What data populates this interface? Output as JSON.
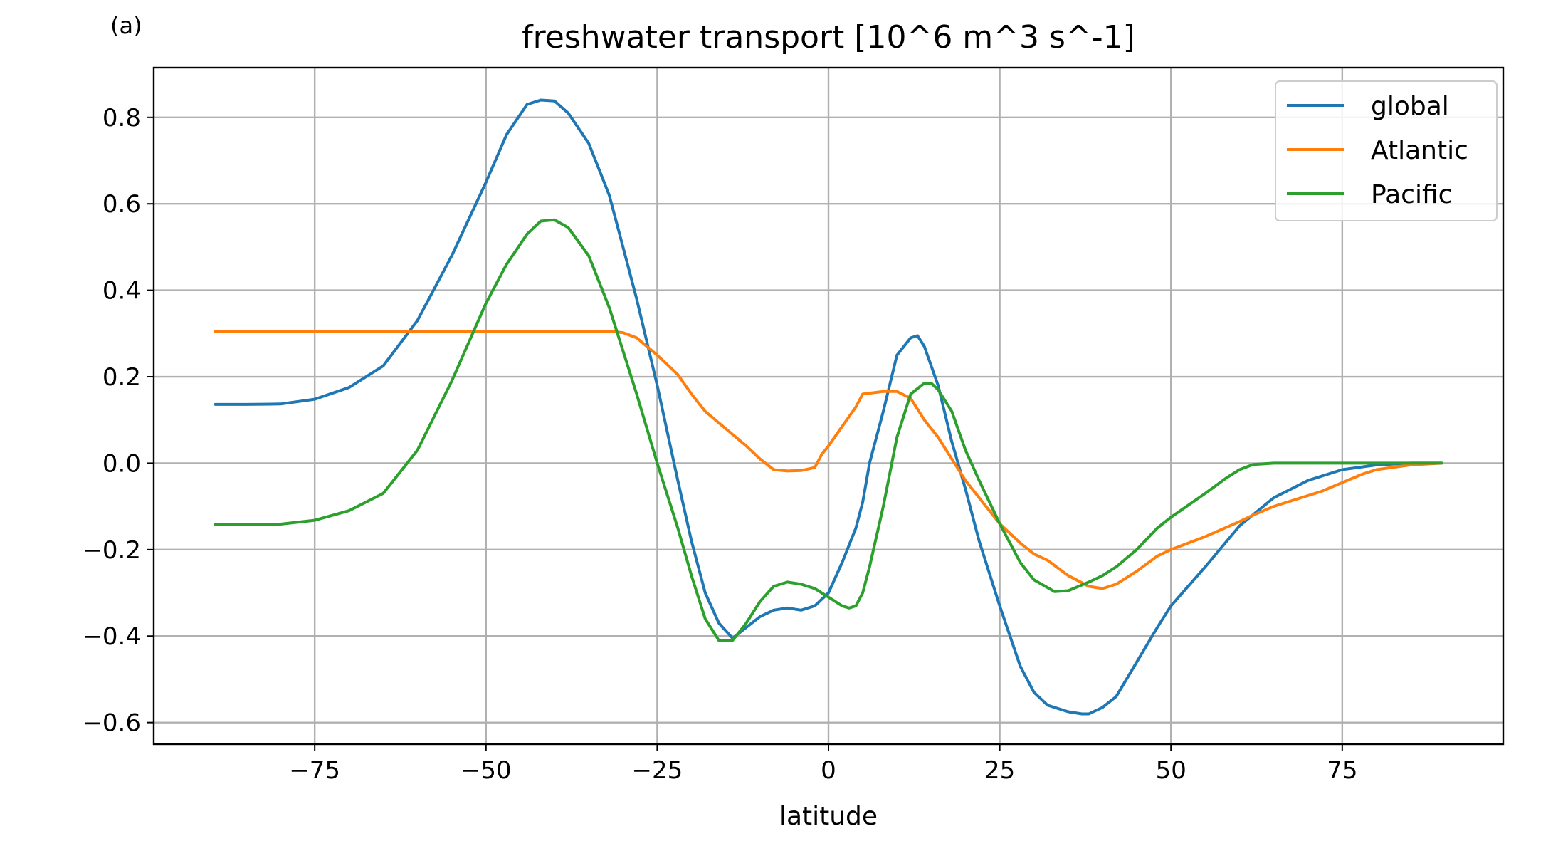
{
  "panel_label": "(a)",
  "chart_data": {
    "type": "line",
    "title": "freshwater transport [10^6 m^3 s^-1]",
    "xlabel": "latitude",
    "ylabel": "",
    "xlim": [
      -98.5,
      98.5
    ],
    "ylim": [
      -0.65,
      0.915
    ],
    "xticks": [
      -75,
      -50,
      -25,
      0,
      25,
      50,
      75
    ],
    "xtick_labels": [
      "−75",
      "−50",
      "−25",
      "0",
      "25",
      "50",
      "75"
    ],
    "yticks": [
      0.8,
      0.6,
      0.4,
      0.2,
      0.0,
      -0.2,
      -0.4,
      -0.6
    ],
    "ytick_labels": [
      "0.8",
      "0.6",
      "0.4",
      "0.2",
      "0.0",
      "−0.2",
      "−0.4",
      "−0.6"
    ],
    "grid": true,
    "legend_position": "top-right",
    "series": [
      {
        "name": "global",
        "color": "#1f77b4",
        "x": [
          -89.5,
          -85,
          -80,
          -75,
          -70,
          -65,
          -60,
          -55,
          -50,
          -47,
          -44,
          -42,
          -40,
          -38,
          -35,
          -32,
          -30,
          -28,
          -25,
          -22,
          -20,
          -18,
          -16,
          -14,
          -12,
          -10,
          -8,
          -6,
          -4,
          -2,
          0,
          2,
          4,
          5,
          6,
          8,
          10,
          12,
          13,
          14,
          16,
          18,
          20,
          22,
          25,
          28,
          30,
          32,
          35,
          37,
          38,
          40,
          42,
          45,
          48,
          50,
          55,
          60,
          65,
          70,
          75,
          80,
          85,
          89.5
        ],
        "y": [
          0.136,
          0.136,
          0.137,
          0.148,
          0.175,
          0.225,
          0.33,
          0.48,
          0.65,
          0.76,
          0.83,
          0.84,
          0.838,
          0.81,
          0.74,
          0.62,
          0.5,
          0.38,
          0.18,
          -0.04,
          -0.18,
          -0.3,
          -0.37,
          -0.405,
          -0.38,
          -0.355,
          -0.34,
          -0.335,
          -0.34,
          -0.33,
          -0.3,
          -0.23,
          -0.15,
          -0.09,
          0.0,
          0.12,
          0.25,
          0.29,
          0.295,
          0.27,
          0.18,
          0.05,
          -0.06,
          -0.18,
          -0.33,
          -0.47,
          -0.53,
          -0.56,
          -0.575,
          -0.58,
          -0.58,
          -0.565,
          -0.54,
          -0.46,
          -0.38,
          -0.33,
          -0.24,
          -0.145,
          -0.08,
          -0.04,
          -0.015,
          -0.004,
          0.0,
          0.0
        ]
      },
      {
        "name": "Atlantic",
        "color": "#ff7f0e",
        "x": [
          -89.5,
          -80,
          -70,
          -60,
          -50,
          -40,
          -32,
          -30,
          -28,
          -25,
          -22,
          -20,
          -18,
          -15,
          -12,
          -10,
          -8,
          -6,
          -4,
          -2,
          -1,
          0,
          2,
          4,
          5,
          6,
          8,
          10,
          12,
          14,
          16,
          18,
          20,
          22,
          25,
          28,
          30,
          32,
          35,
          38,
          40,
          42,
          45,
          48,
          50,
          55,
          60,
          62,
          65,
          68,
          72,
          75,
          78,
          80,
          85,
          89.5
        ],
        "y": [
          0.305,
          0.305,
          0.305,
          0.305,
          0.305,
          0.305,
          0.305,
          0.302,
          0.29,
          0.25,
          0.205,
          0.16,
          0.12,
          0.08,
          0.04,
          0.01,
          -0.015,
          -0.018,
          -0.017,
          -0.01,
          0.02,
          0.04,
          0.085,
          0.13,
          0.16,
          0.162,
          0.166,
          0.166,
          0.15,
          0.1,
          0.06,
          0.01,
          -0.04,
          -0.08,
          -0.14,
          -0.185,
          -0.21,
          -0.225,
          -0.26,
          -0.285,
          -0.29,
          -0.28,
          -0.25,
          -0.215,
          -0.2,
          -0.17,
          -0.135,
          -0.12,
          -0.1,
          -0.085,
          -0.065,
          -0.045,
          -0.025,
          -0.015,
          -0.004,
          0.0
        ]
      },
      {
        "name": "Pacific",
        "color": "#2ca02c",
        "x": [
          -89.5,
          -85,
          -80,
          -75,
          -70,
          -65,
          -60,
          -55,
          -50,
          -47,
          -44,
          -42,
          -40,
          -38,
          -35,
          -32,
          -30,
          -28,
          -25,
          -22,
          -20,
          -18,
          -16,
          -14,
          -12,
          -10,
          -8,
          -6,
          -4,
          -2,
          0,
          2,
          3,
          4,
          5,
          6,
          8,
          10,
          12,
          14,
          15,
          16,
          18,
          20,
          22,
          25,
          28,
          30,
          33,
          35,
          38,
          40,
          42,
          45,
          48,
          50,
          55,
          58,
          60,
          62,
          65,
          70,
          75,
          80,
          85,
          89.5
        ],
        "y": [
          -0.142,
          -0.142,
          -0.141,
          -0.132,
          -0.11,
          -0.07,
          0.03,
          0.19,
          0.37,
          0.46,
          0.53,
          0.56,
          0.563,
          0.545,
          0.48,
          0.36,
          0.26,
          0.16,
          0.0,
          -0.15,
          -0.26,
          -0.36,
          -0.41,
          -0.41,
          -0.37,
          -0.32,
          -0.285,
          -0.275,
          -0.28,
          -0.29,
          -0.31,
          -0.33,
          -0.335,
          -0.33,
          -0.3,
          -0.24,
          -0.1,
          0.06,
          0.16,
          0.185,
          0.185,
          0.17,
          0.12,
          0.03,
          -0.04,
          -0.14,
          -0.23,
          -0.27,
          -0.297,
          -0.295,
          -0.275,
          -0.26,
          -0.24,
          -0.2,
          -0.15,
          -0.125,
          -0.07,
          -0.035,
          -0.015,
          -0.003,
          0.0,
          0.0,
          0.0,
          0.0,
          0.0,
          0.0
        ]
      }
    ]
  }
}
